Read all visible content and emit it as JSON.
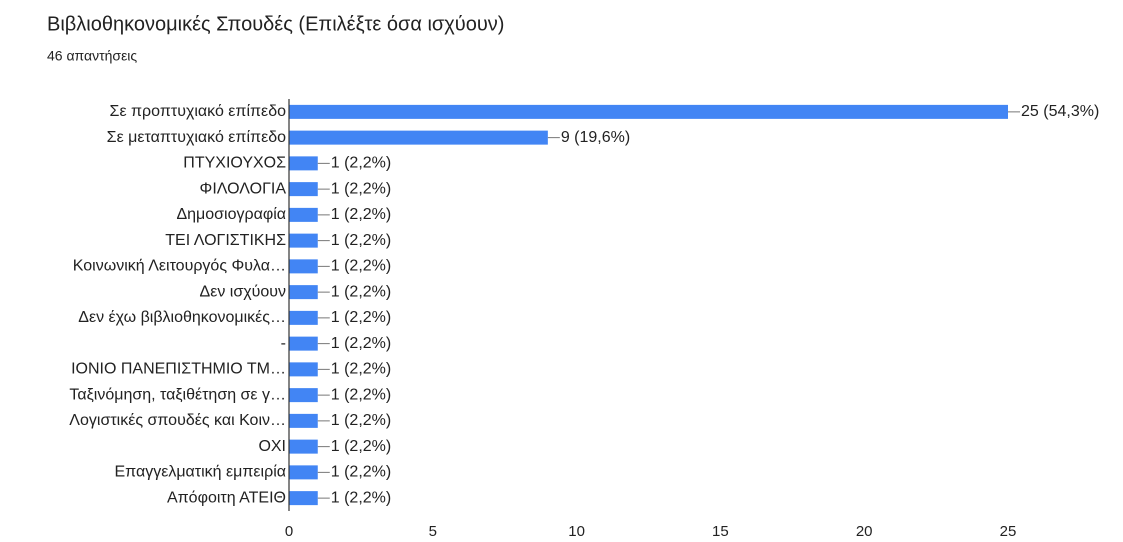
{
  "chart_data": {
    "type": "bar",
    "orientation": "horizontal",
    "title": "Βιβλιοθηκονομικές Σπουδές (Επιλέξτε όσα ισχύουν)",
    "subtitle": "46 απαντήσεις",
    "categories": [
      "Σε προπτυχιακό επίπεδο",
      "Σε μεταπτυχιακό επίπεδο",
      "ΠΤΥΧΙΟΥΧΟΣ",
      "ΦΙΛΟΛΟΓΙΑ",
      "Δημοσιογραφία",
      "ΤΕΙ ΛΟΓΙΣΤΙΚΗΣ",
      "Κοινωνική Λειτουργός Φυλα…",
      "Δεν ισχύουν",
      "Δεν έχω βιβλιοθηκονομικές…",
      "-",
      "ΙΟΝΙΟ ΠΑΝΕΠΙΣΤΗΜΙΟ ΤΜ…",
      "Ταξινόμηση, ταξιθέτηση σε γ…",
      "Λογιστικές σπουδές και Κοιν…",
      "ΟΧΙ",
      "Επαγγελματική εμπειρία",
      "Απόφοιτη ΑΤΕΙΘ"
    ],
    "values": [
      25,
      9,
      1,
      1,
      1,
      1,
      1,
      1,
      1,
      1,
      1,
      1,
      1,
      1,
      1,
      1
    ],
    "value_labels": [
      "25 (54,3%)",
      "9 (19,6%)",
      "1 (2,2%)",
      "1 (2,2%)",
      "1 (2,2%)",
      "1 (2,2%)",
      "1 (2,2%)",
      "1 (2,2%)",
      "1 (2,2%)",
      "1 (2,2%)",
      "1 (2,2%)",
      "1 (2,2%)",
      "1 (2,2%)",
      "1 (2,2%)",
      "1 (2,2%)",
      "1 (2,2%)"
    ],
    "color": "#4285f4",
    "xlim": [
      0,
      25
    ],
    "xticks": [
      0,
      5,
      10,
      15,
      20,
      25
    ],
    "grid": false
  }
}
